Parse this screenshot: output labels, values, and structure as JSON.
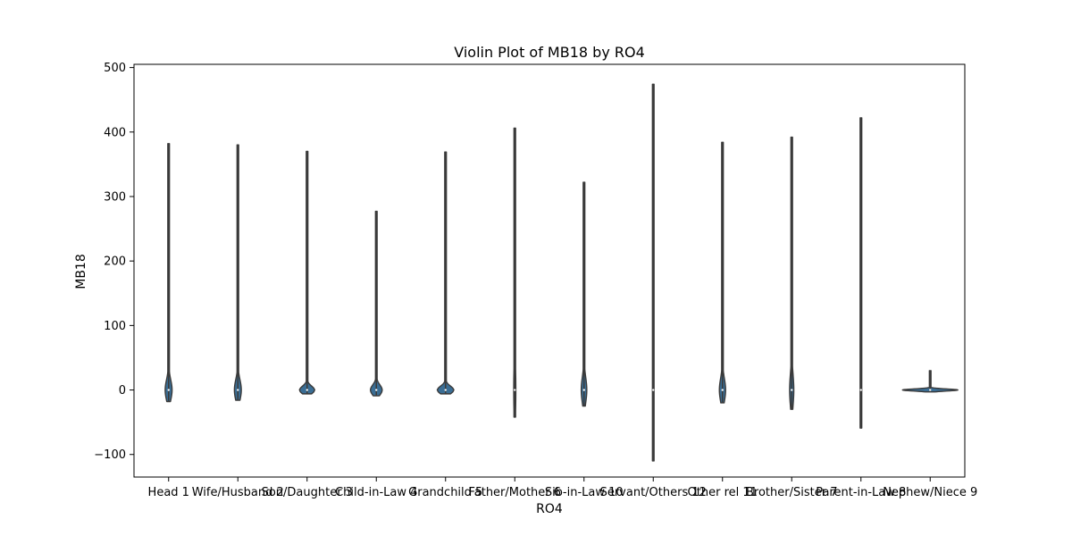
{
  "chart_data": {
    "type": "violin",
    "title": "Violin Plot of MB18 by RO4",
    "xlabel": "RO4",
    "ylabel": "MB18",
    "ylim": [
      -135,
      505
    ],
    "yticks": [
      -100,
      0,
      100,
      200,
      300,
      400,
      500
    ],
    "grid": false,
    "fill_color": "#3a6d94",
    "line_color": "#3a3a3a",
    "categories": [
      "Head 1",
      "Wife/Husband 2",
      "Son/Daughter 3",
      "Child-in-Law 4",
      "Grandchild 5",
      "Father/Mother 6",
      "Sib-in-Law 10",
      "Servant/Others 12",
      "Other rel 11",
      "Brother/Sister 7",
      "Parent-in-Law 8",
      "Nephew/Niece 9"
    ],
    "violins": [
      {
        "min": -18,
        "max": 382,
        "center": 0,
        "width": 0.1,
        "spread": 16
      },
      {
        "min": -16,
        "max": 380,
        "center": 0,
        "width": 0.1,
        "spread": 16
      },
      {
        "min": -6,
        "max": 370,
        "center": 0,
        "width": 0.22,
        "spread": 6
      },
      {
        "min": -9,
        "max": 277,
        "center": 0,
        "width": 0.17,
        "spread": 8
      },
      {
        "min": -6,
        "max": 369,
        "center": 0,
        "width": 0.24,
        "spread": 6
      },
      {
        "min": -42,
        "max": 406,
        "center": 0,
        "width": 0.03,
        "spread": 45
      },
      {
        "min": -25,
        "max": 322,
        "center": 0,
        "width": 0.08,
        "spread": 20
      },
      {
        "min": -110,
        "max": 474,
        "center": 0,
        "width": 0.012,
        "spread": 90
      },
      {
        "min": -20,
        "max": 384,
        "center": 0,
        "width": 0.09,
        "spread": 18
      },
      {
        "min": -30,
        "max": 392,
        "center": 0,
        "width": 0.06,
        "spread": 26
      },
      {
        "min": -59,
        "max": 422,
        "center": 0,
        "width": 0.02,
        "spread": 50
      },
      {
        "min": -3,
        "max": 30,
        "center": 0,
        "width": 0.8,
        "spread": 1.6
      }
    ]
  }
}
